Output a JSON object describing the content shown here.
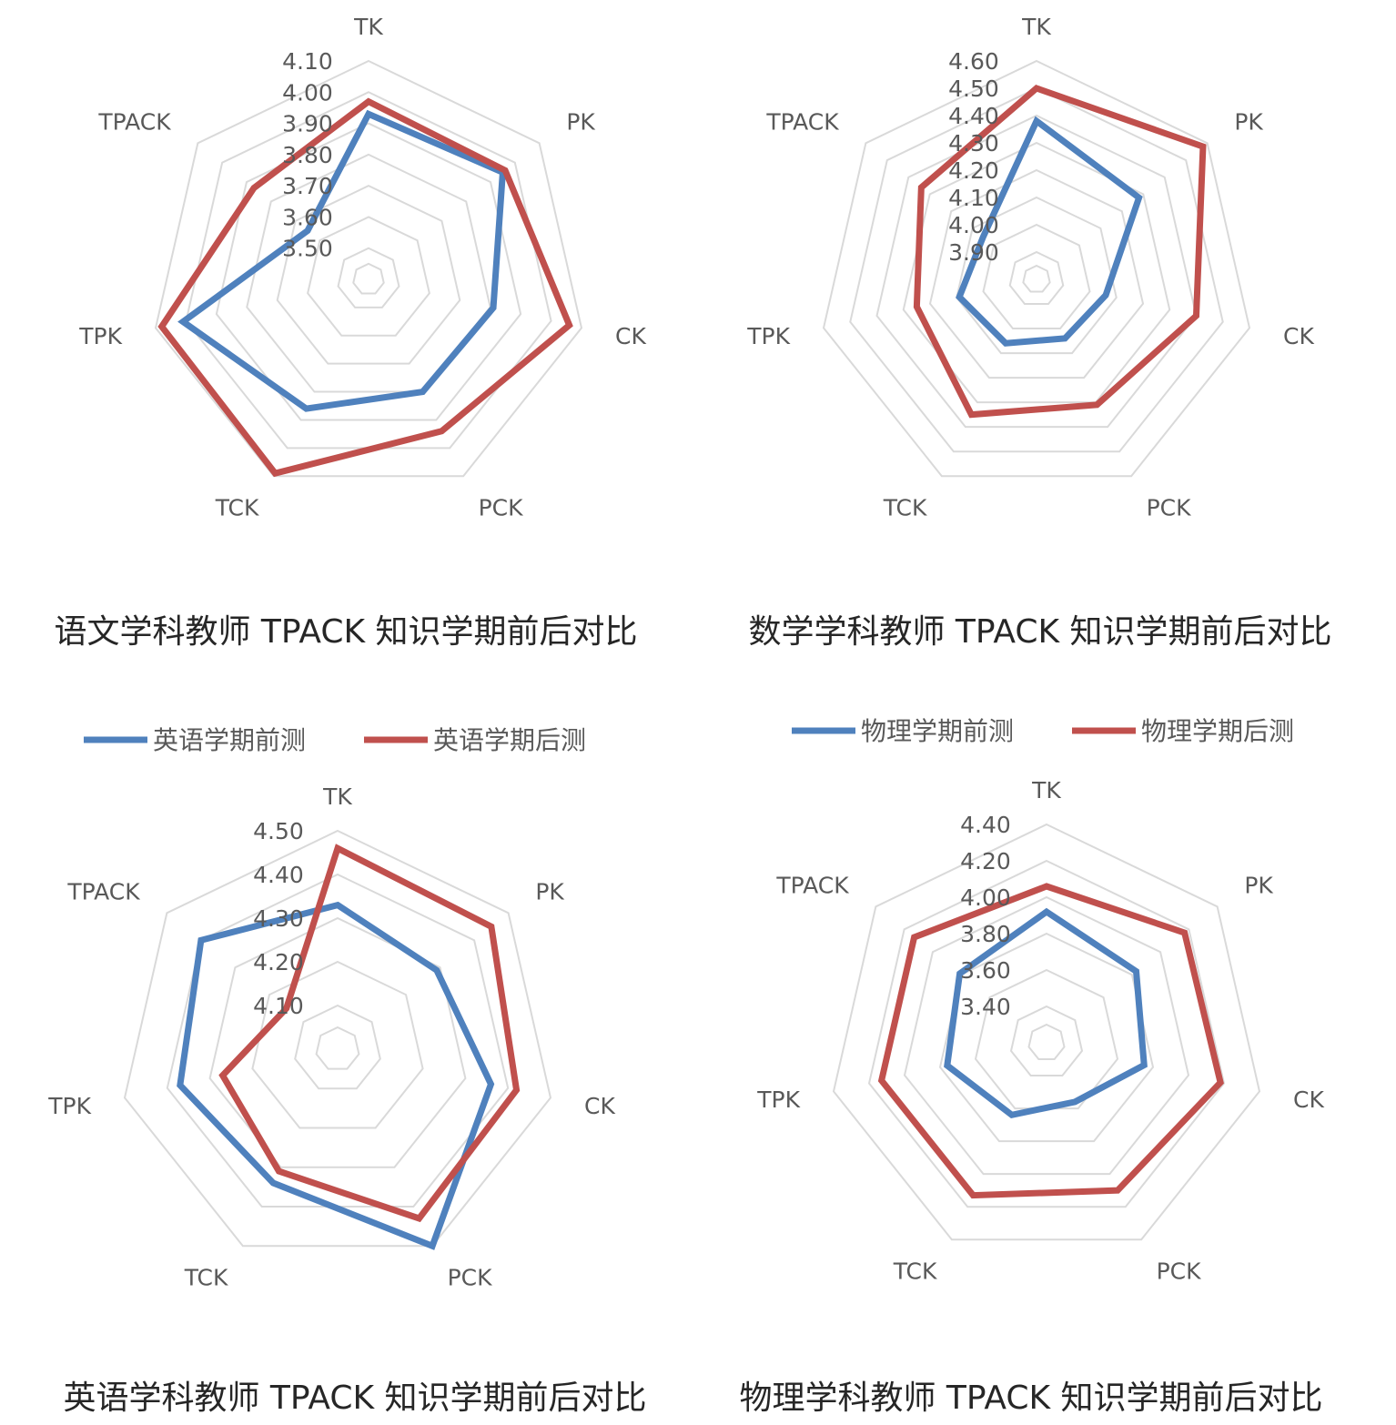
{
  "chart_data": [
    {
      "type": "radar",
      "title": "语文学科教师 TPACK 知识学期前后对比",
      "categories": [
        "TK",
        "PK",
        "CK",
        "PCK",
        "TCK",
        "TPK",
        "TPACK"
      ],
      "rlim": [
        3.4,
        4.1
      ],
      "ticks": [
        "3.50",
        "3.60",
        "3.70",
        "3.80",
        "3.90",
        "4.00",
        "4.10"
      ],
      "tick_values": [
        3.5,
        3.6,
        3.7,
        3.8,
        3.9,
        4.0,
        4.1
      ],
      "legend": null,
      "series": [
        {
          "color": "#4F81BD",
          "values": [
            3.93,
            3.95,
            3.81,
            3.8,
            3.86,
            4.01,
            3.65
          ]
        },
        {
          "color": "#C0504D",
          "values": [
            3.97,
            3.96,
            4.06,
            3.94,
            4.09,
            4.08,
            3.87
          ]
        }
      ]
    },
    {
      "type": "radar",
      "title": "数学学科教师 TPACK 知识学期前后对比",
      "categories": [
        "TK",
        "PK",
        "CK",
        "PCK",
        "TCK",
        "TPK",
        "TPACK"
      ],
      "rlim": [
        3.8,
        4.6
      ],
      "ticks": [
        "3.90",
        "4.00",
        "4.10",
        "4.20",
        "4.30",
        "4.40",
        "4.50",
        "4.60"
      ],
      "tick_values": [
        3.9,
        4.0,
        4.1,
        4.2,
        4.3,
        4.4,
        4.5,
        4.6
      ],
      "legend": null,
      "series": [
        {
          "color": "#4F81BD",
          "values": [
            4.38,
            4.28,
            4.06,
            4.04,
            4.06,
            4.09,
            4.05
          ]
        },
        {
          "color": "#C0504D",
          "values": [
            4.5,
            4.58,
            4.4,
            4.31,
            4.35,
            4.25,
            4.34
          ]
        }
      ]
    },
    {
      "type": "radar",
      "title": "英语学科教师 TPACK 知识学期前后对比",
      "categories": [
        "TK",
        "PK",
        "CK",
        "PCK",
        "TCK",
        "TPK",
        "TPACK"
      ],
      "rlim": [
        4.0,
        4.5
      ],
      "ticks": [
        "4.10",
        "4.20",
        "4.30",
        "4.40",
        "4.50"
      ],
      "tick_values": [
        4.1,
        4.2,
        4.3,
        4.4,
        4.5
      ],
      "legend": {
        "position": "top",
        "items": [
          {
            "label": "英语学期前测",
            "color": "#4F81BD"
          },
          {
            "label": "英语学期后测",
            "color": "#C0504D"
          }
        ]
      },
      "series": [
        {
          "name": "英语学期前测",
          "color": "#4F81BD",
          "values": [
            4.33,
            4.29,
            4.36,
            4.5,
            4.34,
            4.37,
            4.4
          ]
        },
        {
          "name": "英语学期后测",
          "color": "#C0504D",
          "values": [
            4.46,
            4.45,
            4.42,
            4.43,
            4.31,
            4.27,
            4.15
          ]
        }
      ]
    },
    {
      "type": "radar",
      "title": "物理学科教师 TPACK 知识学期前后对比",
      "categories": [
        "TK",
        "PK",
        "CK",
        "PCK",
        "TCK",
        "TPK",
        "TPACK"
      ],
      "rlim": [
        3.2,
        4.4
      ],
      "ticks": [
        "3.40",
        "3.60",
        "3.80",
        "4.00",
        "4.20",
        "4.40"
      ],
      "tick_values": [
        3.4,
        3.6,
        3.8,
        4.0,
        4.2,
        4.4
      ],
      "legend": {
        "position": "top",
        "items": [
          {
            "label": "物理学期前测",
            "color": "#4F81BD"
          },
          {
            "label": "物理学期后测",
            "color": "#C0504D"
          }
        ]
      },
      "series": [
        {
          "name": "物理学期前测",
          "color": "#4F81BD",
          "values": [
            3.92,
            3.83,
            3.75,
            3.56,
            3.64,
            3.76,
            3.81
          ]
        },
        {
          "name": "物理学期后测",
          "color": "#C0504D",
          "values": [
            4.06,
            4.17,
            4.18,
            4.1,
            4.13,
            4.13,
            4.13
          ]
        }
      ]
    }
  ]
}
